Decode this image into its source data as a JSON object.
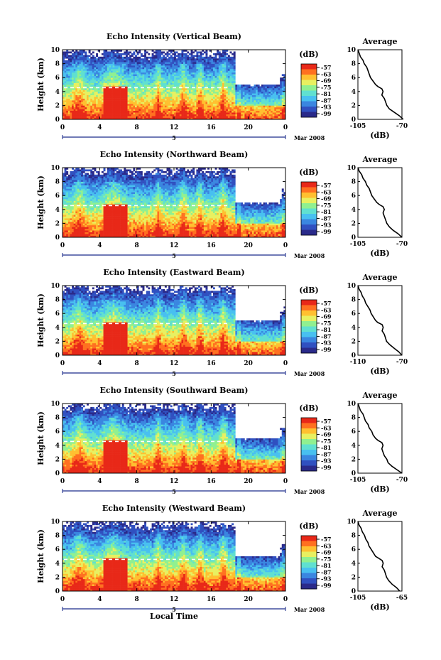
{
  "figure": {
    "xlabel": "Local Time",
    "date_label": "Mar 2008",
    "colorbar_unit": "(dB)",
    "colorbar_ticks": [
      "-57",
      "-63",
      "-69",
      "-75",
      "-81",
      "-87",
      "-93",
      "-99"
    ],
    "avg_title": "Average",
    "avg_xlabel": "(dB)",
    "day_marker": "5",
    "heat_xticks": [
      "0",
      "4",
      "8",
      "12",
      "16",
      "20",
      "0"
    ],
    "heat_yticks": [
      "0",
      "2",
      "4",
      "6",
      "8",
      "10"
    ],
    "ylabel": "Height (km)",
    "palette": [
      "#2a2a8a",
      "#3050c0",
      "#3a86e0",
      "#48c0f0",
      "#60e0d0",
      "#90f090",
      "#e8f060",
      "#ffc030",
      "#ff7020",
      "#e82818"
    ]
  },
  "chart_data": [
    {
      "type": "heatmap",
      "title": "Echo Intensity (Vertical Beam)",
      "avg_xticks": [
        "-105",
        "-70"
      ],
      "avg_xlim": [
        -105,
        -70
      ],
      "avg_profile": [
        [
          -69,
          0
        ],
        [
          -72,
          0.5
        ],
        [
          -76,
          1
        ],
        [
          -80,
          1.5
        ],
        [
          -82,
          2
        ],
        [
          -83,
          2.5
        ],
        [
          -84,
          3
        ],
        [
          -86,
          3.5
        ],
        [
          -85,
          4
        ],
        [
          -86,
          4.4
        ],
        [
          -89,
          4.7
        ],
        [
          -91,
          5
        ],
        [
          -93,
          5.5
        ],
        [
          -95,
          6
        ],
        [
          -96,
          6.5
        ],
        [
          -97,
          7
        ],
        [
          -98,
          7.5
        ],
        [
          -100,
          8
        ],
        [
          -101,
          8.5
        ],
        [
          -103,
          9
        ],
        [
          -104,
          9.5
        ],
        [
          -105,
          10
        ]
      ],
      "ylim": [
        0,
        10
      ],
      "xlim": [
        0,
        24
      ]
    },
    {
      "type": "heatmap",
      "title": "Echo Intensity (Northward Beam)",
      "avg_xticks": [
        "-105",
        "-70"
      ],
      "avg_xlim": [
        -105,
        -70
      ],
      "avg_profile": [
        [
          -70,
          0
        ],
        [
          -73,
          0.5
        ],
        [
          -77,
          1
        ],
        [
          -80,
          1.5
        ],
        [
          -82,
          2
        ],
        [
          -83,
          2.5
        ],
        [
          -84,
          3
        ],
        [
          -85,
          3.5
        ],
        [
          -84,
          4
        ],
        [
          -85,
          4.4
        ],
        [
          -88,
          4.7
        ],
        [
          -90,
          5
        ],
        [
          -92,
          5.5
        ],
        [
          -94,
          6
        ],
        [
          -95,
          6.5
        ],
        [
          -96,
          7
        ],
        [
          -98,
          7.5
        ],
        [
          -99,
          8
        ],
        [
          -101,
          8.5
        ],
        [
          -102,
          9
        ],
        [
          -104,
          9.5
        ],
        [
          -105,
          10
        ]
      ],
      "ylim": [
        0,
        10
      ],
      "xlim": [
        0,
        24
      ]
    },
    {
      "type": "heatmap",
      "title": "Echo Intensity (Eastward Beam)",
      "avg_xticks": [
        "-110",
        "-70"
      ],
      "avg_xlim": [
        -110,
        -70
      ],
      "avg_profile": [
        [
          -70,
          0
        ],
        [
          -73,
          0.5
        ],
        [
          -77,
          1
        ],
        [
          -81,
          1.5
        ],
        [
          -84,
          2
        ],
        [
          -85,
          2.5
        ],
        [
          -86,
          3
        ],
        [
          -88,
          3.5
        ],
        [
          -87,
          4
        ],
        [
          -88,
          4.4
        ],
        [
          -92,
          4.7
        ],
        [
          -94,
          5
        ],
        [
          -96,
          5.5
        ],
        [
          -98,
          6
        ],
        [
          -99,
          6.5
        ],
        [
          -101,
          7
        ],
        [
          -103,
          7.5
        ],
        [
          -104,
          8
        ],
        [
          -106,
          8.5
        ],
        [
          -107,
          9
        ],
        [
          -109,
          9.5
        ],
        [
          -110,
          10
        ]
      ],
      "ylim": [
        0,
        10
      ],
      "xlim": [
        0,
        24
      ]
    },
    {
      "type": "heatmap",
      "title": "Echo Intensity (Southward Beam)",
      "avg_xticks": [
        "-105",
        "-70"
      ],
      "avg_xlim": [
        -105,
        -70
      ],
      "avg_profile": [
        [
          -70,
          0
        ],
        [
          -74,
          0.5
        ],
        [
          -78,
          1
        ],
        [
          -81,
          1.5
        ],
        [
          -82,
          2
        ],
        [
          -84,
          2.5
        ],
        [
          -85,
          3
        ],
        [
          -86,
          3.5
        ],
        [
          -85,
          4
        ],
        [
          -86,
          4.4
        ],
        [
          -89,
          4.7
        ],
        [
          -91,
          5
        ],
        [
          -93,
          5.5
        ],
        [
          -94,
          6
        ],
        [
          -96,
          6.5
        ],
        [
          -97,
          7
        ],
        [
          -99,
          7.5
        ],
        [
          -100,
          8
        ],
        [
          -101,
          8.5
        ],
        [
          -103,
          9
        ],
        [
          -104,
          9.5
        ],
        [
          -105,
          10
        ]
      ],
      "ylim": [
        0,
        10
      ],
      "xlim": [
        0,
        24
      ]
    },
    {
      "type": "heatmap",
      "title": "Echo Intensity (Westward Beam)",
      "avg_xticks": [
        "-105",
        "-65"
      ],
      "avg_xlim": [
        -105,
        -65
      ],
      "avg_profile": [
        [
          -67,
          0
        ],
        [
          -70,
          0.5
        ],
        [
          -74,
          1
        ],
        [
          -77,
          1.5
        ],
        [
          -79,
          2
        ],
        [
          -80,
          2.5
        ],
        [
          -81,
          3
        ],
        [
          -83,
          3.5
        ],
        [
          -82,
          4
        ],
        [
          -83,
          4.4
        ],
        [
          -86,
          4.7
        ],
        [
          -89,
          5
        ],
        [
          -91,
          5.5
        ],
        [
          -93,
          6
        ],
        [
          -95,
          6.5
        ],
        [
          -96,
          7
        ],
        [
          -98,
          7.5
        ],
        [
          -99,
          8
        ],
        [
          -101,
          8.5
        ],
        [
          -102,
          9
        ],
        [
          -104,
          9.5
        ],
        [
          -105,
          10
        ]
      ],
      "ylim": [
        0,
        10
      ],
      "xlim": [
        0,
        24
      ]
    }
  ]
}
